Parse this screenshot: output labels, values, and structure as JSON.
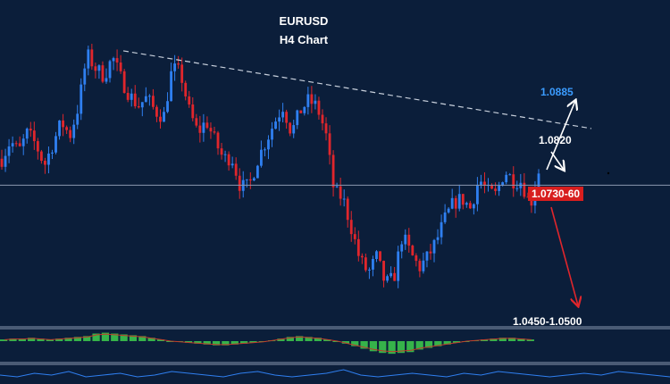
{
  "chart_data": {
    "type": "candlestick",
    "title": "EURUSD",
    "subtitle": "H4 Chart",
    "colors": {
      "up": "#2f7ff0",
      "down": "#e0262c",
      "background": "#0b1e3a",
      "trendline": "#c8d0dc",
      "hline": "#8a98b0",
      "histogram": "#36b34a",
      "signal": "#c0392b"
    },
    "price_path": [
      1.0712,
      1.0745,
      1.0725,
      1.076,
      1.0738,
      1.07,
      1.074,
      1.078,
      1.0755,
      1.081,
      1.0905,
      1.088,
      1.0865,
      1.09,
      1.086,
      1.083,
      1.081,
      1.0825,
      1.08,
      1.079,
      1.088,
      1.087,
      1.08,
      1.076,
      1.0782,
      1.0745,
      1.0712,
      1.0715,
      1.066,
      1.066,
      1.071,
      1.0745,
      1.078,
      1.081,
      1.076,
      1.08,
      1.082,
      1.0808,
      1.076,
      1.065,
      1.064,
      1.0585,
      1.0525,
      1.05,
      1.053,
      1.048,
      1.049,
      1.057,
      1.0535,
      1.051,
      1.053,
      1.056,
      1.06,
      1.063,
      1.0638,
      1.062,
      1.0675,
      1.065,
      1.0645,
      1.069,
      1.0672,
      1.067,
      1.0625,
      1.069
    ],
    "levels": {
      "target_high": "1.0885",
      "resistance": "1.0820",
      "current_zone": "1.0730-60",
      "target_low": "1.0450-1.0500"
    },
    "trendline": {
      "from": 1.0912,
      "to": 1.0768,
      "style": "dashed"
    },
    "support_line": 1.0663,
    "y_range": [
      1.046,
      1.094
    ],
    "indicator": {
      "type": "histogram",
      "values": [
        2,
        3,
        3,
        4,
        3,
        2,
        3,
        4,
        5,
        6,
        9,
        10,
        9,
        8,
        7,
        6,
        4,
        2,
        0,
        -1,
        -2,
        -3,
        -4,
        -5,
        -5,
        -4,
        -3,
        -2,
        -1,
        1,
        3,
        5,
        6,
        5,
        4,
        2,
        0,
        -3,
        -6,
        -9,
        -12,
        -14,
        -15,
        -14,
        -13,
        -10,
        -8,
        -6,
        -4,
        -2,
        0,
        1,
        2,
        3,
        4,
        4,
        3,
        2
      ],
      "range": [
        -16,
        12
      ]
    },
    "oscillator": {
      "type": "line",
      "values": [
        3,
        2,
        4,
        3,
        5,
        2,
        3,
        4,
        2,
        3,
        5,
        4,
        3,
        2,
        4,
        5,
        3,
        2,
        3,
        4,
        6,
        3,
        2,
        3,
        4,
        3,
        2,
        4,
        3,
        5,
        4,
        3,
        2,
        3,
        4,
        3,
        5,
        4,
        3,
        2
      ],
      "range": [
        0,
        8
      ]
    },
    "grid": false,
    "legend": "none"
  }
}
